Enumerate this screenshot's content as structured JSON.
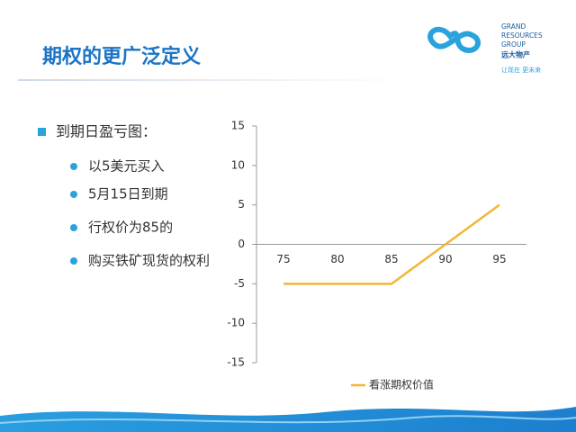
{
  "slide": {
    "title": "期权的更广泛定义",
    "logo": {
      "lines": [
        "GRAND",
        "RESOURCES",
        "GROUP"
      ],
      "cn_name": "远大物产",
      "slogan": "让现在 更未来"
    },
    "bullet": "到期日盈亏图：",
    "sub_bullets": [
      "以5美元买入",
      "5月15日到期",
      "行权价为85的",
      "购买铁矿现货的权利"
    ]
  },
  "chart_data": {
    "type": "line",
    "categories": [
      "75",
      "80",
      "85",
      "90",
      "95"
    ],
    "series": [
      {
        "name": "看涨期权价值",
        "color": "#f2b634",
        "values": [
          -5,
          -5,
          -5,
          0,
          5
        ]
      }
    ],
    "ylim": [
      -15,
      15
    ],
    "yticks": [
      -15,
      -10,
      -5,
      0,
      5,
      10,
      15
    ],
    "legend": "bottom"
  }
}
